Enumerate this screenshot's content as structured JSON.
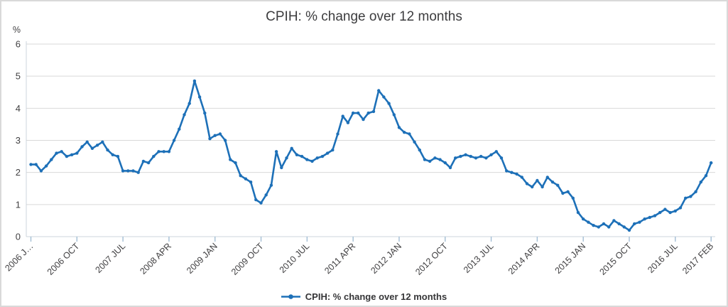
{
  "chart_data": {
    "type": "line",
    "title": "CPIH: % change over 12 months",
    "y_axis": {
      "unit_label": "%",
      "ticks": [
        0,
        1,
        2,
        3,
        4,
        5,
        6
      ],
      "ylim": [
        0,
        6
      ],
      "grid": "horizontal"
    },
    "x_axis": {
      "start": "2006 JAN",
      "frequency": "monthly",
      "n_points": 134,
      "tick_month_indices": [
        0,
        9,
        18,
        27,
        36,
        45,
        54,
        63,
        72,
        81,
        90,
        99,
        108,
        117,
        126,
        133
      ],
      "tick_labels": [
        "2006 J…",
        "2006 OCT",
        "2007 JUL",
        "2008 APR",
        "2009 JAN",
        "2009 OCT",
        "2010 JUL",
        "2011 APR",
        "2012 JAN",
        "2012 OCT",
        "2013 JUL",
        "2014 APR",
        "2015 JAN",
        "2015 OCT",
        "2016 JUL",
        "2017 FEB"
      ],
      "label_rotation_deg": -45
    },
    "series": [
      {
        "name": "CPIH: % change over 12 months",
        "color": "#1d70b8",
        "values": [
          2.25,
          2.25,
          2.05,
          2.2,
          2.4,
          2.6,
          2.65,
          2.5,
          2.55,
          2.6,
          2.8,
          2.95,
          2.75,
          2.85,
          2.95,
          2.7,
          2.55,
          2.5,
          2.05,
          2.05,
          2.05,
          2.0,
          2.35,
          2.3,
          2.5,
          2.65,
          2.65,
          2.65,
          3.0,
          3.35,
          3.8,
          4.15,
          4.85,
          4.35,
          3.85,
          3.05,
          3.15,
          3.2,
          3.0,
          2.4,
          2.3,
          1.9,
          1.8,
          1.7,
          1.15,
          1.05,
          1.3,
          1.6,
          2.65,
          2.15,
          2.45,
          2.75,
          2.55,
          2.5,
          2.4,
          2.35,
          2.45,
          2.5,
          2.6,
          2.7,
          3.2,
          3.75,
          3.55,
          3.85,
          3.85,
          3.65,
          3.85,
          3.9,
          4.55,
          4.35,
          4.15,
          3.8,
          3.4,
          3.25,
          3.2,
          2.95,
          2.7,
          2.4,
          2.35,
          2.45,
          2.4,
          2.3,
          2.15,
          2.45,
          2.5,
          2.55,
          2.5,
          2.45,
          2.5,
          2.45,
          2.55,
          2.65,
          2.45,
          2.05,
          2.0,
          1.95,
          1.85,
          1.65,
          1.55,
          1.75,
          1.55,
          1.85,
          1.7,
          1.6,
          1.35,
          1.4,
          1.2,
          0.75,
          0.55,
          0.45,
          0.35,
          0.3,
          0.4,
          0.3,
          0.5,
          0.4,
          0.3,
          0.2,
          0.4,
          0.45,
          0.55,
          0.6,
          0.65,
          0.75,
          0.85,
          0.75,
          0.8,
          0.9,
          1.2,
          1.25,
          1.4,
          1.7,
          1.9,
          2.3
        ]
      }
    ],
    "legend": {
      "label": "CPIH: % change over 12 months",
      "position": "bottom-center",
      "marker": "line-with-dot"
    },
    "colors": {
      "line": "#1d70b8",
      "gridline": "#d9d9d9",
      "axis_line": "#ccd5dc",
      "tick_mark": "#a3bed4",
      "text": "#414042",
      "title_text": "#3c3c3e",
      "panel_border": "#d9d9d9"
    }
  }
}
